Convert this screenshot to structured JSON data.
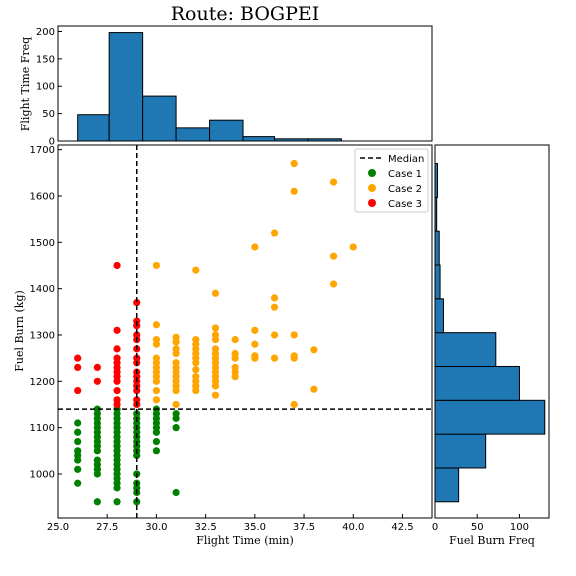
{
  "chart_data": {
    "type": "scatter",
    "title": "Route: BOGPEI",
    "main": {
      "xlabel": "Flight Time (min)",
      "ylabel": "Fuel Burn (kg)",
      "xlim": [
        25,
        44
      ],
      "ylim": [
        905,
        1710
      ],
      "xticks": [
        "25.0",
        "27.5",
        "30.0",
        "32.5",
        "35.0",
        "37.5",
        "40.0",
        "42.5"
      ],
      "yticks": [
        "1000",
        "1100",
        "1200",
        "1300",
        "1400",
        "1500",
        "1600",
        "1700"
      ],
      "median": {
        "x": 29,
        "y": 1140
      },
      "series": [
        {
          "name": "Case 1",
          "color": "#008000",
          "points": [
            [
              26,
              980
            ],
            [
              26,
              1010
            ],
            [
              26,
              1030
            ],
            [
              26,
              1040
            ],
            [
              26,
              1050
            ],
            [
              26,
              1070
            ],
            [
              26,
              1090
            ],
            [
              26,
              1110
            ],
            [
              27,
              940
            ],
            [
              27,
              1000
            ],
            [
              27,
              1010
            ],
            [
              27,
              1020
            ],
            [
              27,
              1030
            ],
            [
              27,
              1050
            ],
            [
              27,
              1060
            ],
            [
              27,
              1070
            ],
            [
              27,
              1080
            ],
            [
              27,
              1090
            ],
            [
              27,
              1100
            ],
            [
              27,
              1110
            ],
            [
              27,
              1120
            ],
            [
              27,
              1130
            ],
            [
              27,
              1140
            ],
            [
              28,
              940
            ],
            [
              28,
              970
            ],
            [
              28,
              980
            ],
            [
              28,
              990
            ],
            [
              28,
              1000
            ],
            [
              28,
              1010
            ],
            [
              28,
              1020
            ],
            [
              28,
              1030
            ],
            [
              28,
              1040
            ],
            [
              28,
              1050
            ],
            [
              28,
              1060
            ],
            [
              28,
              1070
            ],
            [
              28,
              1080
            ],
            [
              28,
              1090
            ],
            [
              28,
              1100
            ],
            [
              28,
              1110
            ],
            [
              28,
              1120
            ],
            [
              28,
              1130
            ],
            [
              28,
              1140
            ],
            [
              29,
              940
            ],
            [
              29,
              960
            ],
            [
              29,
              970
            ],
            [
              29,
              980
            ],
            [
              29,
              1000
            ],
            [
              29,
              1040
            ],
            [
              29,
              1050
            ],
            [
              29,
              1060
            ],
            [
              29,
              1070
            ],
            [
              29,
              1080
            ],
            [
              29,
              1090
            ],
            [
              29,
              1100
            ],
            [
              29,
              1110
            ],
            [
              29,
              1120
            ],
            [
              29,
              1130
            ],
            [
              30,
              1050
            ],
            [
              30,
              1070
            ],
            [
              30,
              1090
            ],
            [
              30,
              1100
            ],
            [
              30,
              1110
            ],
            [
              30,
              1120
            ],
            [
              30,
              1130
            ],
            [
              30,
              1140
            ],
            [
              31,
              960
            ],
            [
              31,
              1100
            ],
            [
              31,
              1120
            ],
            [
              31,
              1130
            ]
          ]
        },
        {
          "name": "Case 2",
          "color": "#ffa500",
          "points": [
            [
              30,
              1450
            ],
            [
              30,
              1322
            ],
            [
              30,
              1290
            ],
            [
              30,
              1280
            ],
            [
              30,
              1250
            ],
            [
              30,
              1240
            ],
            [
              30,
              1230
            ],
            [
              30,
              1220
            ],
            [
              30,
              1210
            ],
            [
              30,
              1200
            ],
            [
              30,
              1180
            ],
            [
              30,
              1160
            ],
            [
              31,
              1295
            ],
            [
              31,
              1285
            ],
            [
              31,
              1270
            ],
            [
              31,
              1260
            ],
            [
              31,
              1240
            ],
            [
              31,
              1230
            ],
            [
              31,
              1220
            ],
            [
              31,
              1210
            ],
            [
              31,
              1200
            ],
            [
              31,
              1190
            ],
            [
              31,
              1180
            ],
            [
              31,
              1150
            ],
            [
              32,
              1440
            ],
            [
              32,
              1290
            ],
            [
              32,
              1280
            ],
            [
              32,
              1270
            ],
            [
              32,
              1260
            ],
            [
              32,
              1250
            ],
            [
              32,
              1240
            ],
            [
              32,
              1225
            ],
            [
              32,
              1210
            ],
            [
              32,
              1200
            ],
            [
              32,
              1190
            ],
            [
              32,
              1180
            ],
            [
              33,
              1390
            ],
            [
              33,
              1315
            ],
            [
              33,
              1300
            ],
            [
              33,
              1290
            ],
            [
              33,
              1270
            ],
            [
              33,
              1260
            ],
            [
              33,
              1250
            ],
            [
              33,
              1240
            ],
            [
              33,
              1230
            ],
            [
              33,
              1220
            ],
            [
              33,
              1210
            ],
            [
              33,
              1200
            ],
            [
              33,
              1190
            ],
            [
              33,
              1170
            ],
            [
              34,
              1290
            ],
            [
              34,
              1260
            ],
            [
              34,
              1250
            ],
            [
              34,
              1230
            ],
            [
              34,
              1220
            ],
            [
              34,
              1210
            ],
            [
              35,
              1490
            ],
            [
              35,
              1310
            ],
            [
              35,
              1280
            ],
            [
              35,
              1255
            ],
            [
              35,
              1250
            ],
            [
              36,
              1520
            ],
            [
              36,
              1380
            ],
            [
              36,
              1360
            ],
            [
              36,
              1300
            ],
            [
              36,
              1250
            ],
            [
              37,
              1670
            ],
            [
              37,
              1610
            ],
            [
              37,
              1300
            ],
            [
              37,
              1255
            ],
            [
              37,
              1250
            ],
            [
              37,
              1150
            ],
            [
              38,
              1268
            ],
            [
              38,
              1183
            ],
            [
              39,
              1630
            ],
            [
              39,
              1470
            ],
            [
              39,
              1410
            ],
            [
              40,
              1490
            ]
          ]
        },
        {
          "name": "Case 3",
          "color": "#ff0000",
          "points": [
            [
              26,
              1250
            ],
            [
              26,
              1230
            ],
            [
              26,
              1180
            ],
            [
              27,
              1230
            ],
            [
              27,
              1200
            ],
            [
              28,
              1450
            ],
            [
              28,
              1310
            ],
            [
              28,
              1270
            ],
            [
              28,
              1250
            ],
            [
              28,
              1240
            ],
            [
              28,
              1230
            ],
            [
              28,
              1220
            ],
            [
              28,
              1210
            ],
            [
              28,
              1200
            ],
            [
              28,
              1180
            ],
            [
              28,
              1160
            ],
            [
              28,
              1150
            ],
            [
              29,
              1370
            ],
            [
              29,
              1330
            ],
            [
              29,
              1320
            ],
            [
              29,
              1300
            ],
            [
              29,
              1290
            ],
            [
              29,
              1270
            ],
            [
              29,
              1250
            ],
            [
              29,
              1240
            ],
            [
              29,
              1220
            ],
            [
              29,
              1210
            ],
            [
              29,
              1200
            ],
            [
              29,
              1190
            ],
            [
              29,
              1180
            ],
            [
              29,
              1160
            ],
            [
              29,
              1150
            ]
          ]
        }
      ],
      "legend": {
        "placement": "top-right",
        "median_label": "Median"
      }
    },
    "top_histogram": {
      "ylabel": "Flight Time Freq",
      "ylim": [
        0,
        210
      ],
      "yticks": [
        "0",
        "50",
        "100",
        "150",
        "200"
      ],
      "bins": [
        {
          "x0": 26.0,
          "x1": 27.6,
          "count": 48
        },
        {
          "x0": 27.6,
          "x1": 29.3,
          "count": 198
        },
        {
          "x0": 29.3,
          "x1": 31.0,
          "count": 82
        },
        {
          "x0": 31.0,
          "x1": 32.7,
          "count": 24
        },
        {
          "x0": 32.7,
          "x1": 34.4,
          "count": 38
        },
        {
          "x0": 34.4,
          "x1": 36.0,
          "count": 8
        },
        {
          "x0": 36.0,
          "x1": 37.7,
          "count": 4
        },
        {
          "x0": 37.7,
          "x1": 39.4,
          "count": 4
        },
        {
          "x0": 39.4,
          "x1": 41.1,
          "count": 0
        },
        {
          "x0": 41.1,
          "x1": 42.8,
          "count": 0
        }
      ]
    },
    "right_histogram": {
      "xlabel": "Fuel Burn Freq",
      "xlim": [
        0,
        135
      ],
      "xticks": [
        "0",
        "50",
        "100"
      ],
      "bins": [
        {
          "y0": 940,
          "y1": 1013,
          "count": 28
        },
        {
          "y0": 1013,
          "y1": 1086,
          "count": 60
        },
        {
          "y0": 1086,
          "y1": 1159,
          "count": 130
        },
        {
          "y0": 1159,
          "y1": 1232,
          "count": 100
        },
        {
          "y0": 1232,
          "y1": 1305,
          "count": 72
        },
        {
          "y0": 1305,
          "y1": 1378,
          "count": 10
        },
        {
          "y0": 1378,
          "y1": 1451,
          "count": 6
        },
        {
          "y0": 1451,
          "y1": 1524,
          "count": 5
        },
        {
          "y0": 1524,
          "y1": 1597,
          "count": 2
        },
        {
          "y0": 1597,
          "y1": 1670,
          "count": 3
        }
      ]
    },
    "colors": {
      "bar_fill": "#1f77b4",
      "bar_edge": "#000000"
    }
  }
}
